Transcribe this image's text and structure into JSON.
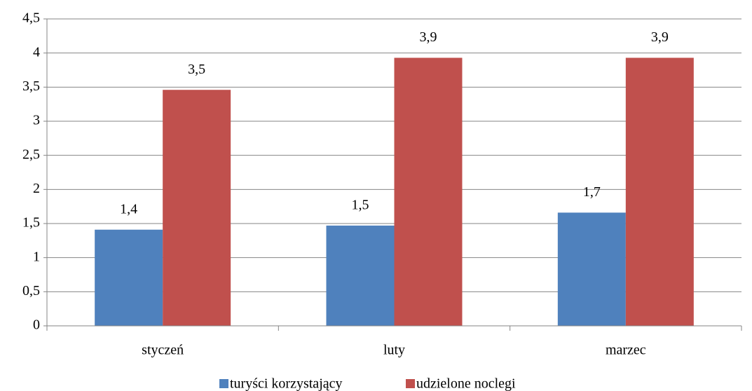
{
  "chart_data": {
    "type": "bar",
    "categories": [
      "styczeń",
      "luty",
      "marzec"
    ],
    "series": [
      {
        "name": "turyści korzystający",
        "color": "#4f81bd",
        "values": [
          1.41,
          1.47,
          1.66
        ],
        "value_labels": [
          "1,4",
          "1,5",
          "1,7"
        ]
      },
      {
        "name": "udzielone noclegi",
        "color": "#c0504d",
        "values": [
          3.46,
          3.93,
          3.93
        ],
        "value_labels": [
          "3,5",
          "3,9",
          "3,9"
        ]
      }
    ],
    "ylim": [
      0,
      4.5
    ],
    "yticks": [
      0,
      {
        "value": 0.5,
        "label": "0,5"
      },
      1,
      {
        "value": 1.5,
        "label": "1,5"
      },
      2,
      {
        "value": 2.5,
        "label": "2,5"
      },
      3,
      {
        "value": 3.5,
        "label": "3,5"
      },
      4,
      {
        "value": 4.5,
        "label": "4,5"
      }
    ],
    "grid": true,
    "legend": "bottom"
  }
}
